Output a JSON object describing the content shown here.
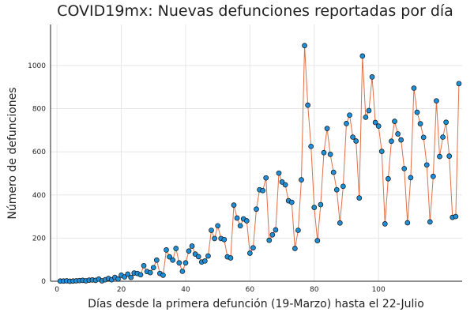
{
  "chart_data": {
    "type": "line",
    "title": "COVID19mx: Nuevas defunciones reportadas por día",
    "xlabel": "Días desde la primera defunción (19-Marzo) hasta el 22-Julio",
    "ylabel": "Número de defunciones",
    "xlim": [
      -2,
      126
    ],
    "ylim": [
      0,
      1190
    ],
    "xticks": [
      0,
      20,
      40,
      60,
      80,
      100
    ],
    "yticks": [
      0,
      200,
      400,
      600,
      800,
      1000
    ],
    "grid": true,
    "legend": false,
    "line_color": "#e26f46",
    "marker_color": "#1f8ed6",
    "marker_edge_color": "#111111",
    "series": [
      {
        "x": [
          1,
          2,
          3,
          4,
          5,
          6,
          7,
          8,
          9,
          10,
          11,
          12,
          13,
          14,
          15,
          16,
          17,
          18,
          19,
          20,
          21,
          22,
          23,
          24,
          25,
          26,
          27,
          28,
          29,
          30,
          31,
          32,
          33,
          34,
          35,
          36,
          37,
          38,
          39,
          40,
          41,
          42,
          43,
          44,
          45,
          46,
          47,
          48,
          49,
          50,
          51,
          52,
          53,
          54,
          55,
          56,
          57,
          58,
          59,
          60,
          61,
          62,
          63,
          64,
          65,
          66,
          67,
          68,
          69,
          70,
          71,
          72,
          73,
          74,
          75,
          76,
          77,
          78,
          79,
          80,
          81,
          82,
          83,
          84,
          85,
          86,
          87,
          88,
          89,
          90,
          91,
          92,
          93,
          94,
          95,
          96,
          97,
          98,
          99,
          100,
          101,
          102,
          103,
          104,
          105,
          106,
          107,
          108,
          109,
          110,
          111,
          112,
          113,
          114,
          115,
          116,
          117,
          118,
          119,
          120,
          121,
          122,
          123,
          124,
          125
        ],
        "values": [
          1,
          1,
          2,
          0,
          1,
          2,
          3,
          4,
          2,
          5,
          6,
          4,
          10,
          2,
          7,
          13,
          7,
          18,
          10,
          28,
          20,
          33,
          18,
          38,
          36,
          30,
          72,
          45,
          40,
          63,
          98,
          36,
          28,
          145,
          113,
          98,
          152,
          85,
          46,
          85,
          140,
          163,
          126,
          114,
          89,
          94,
          117,
          236,
          198,
          257,
          198,
          193,
          113,
          108,
          353,
          293,
          257,
          289,
          280,
          130,
          155,
          334,
          424,
          420,
          479,
          190,
          215,
          238,
          501,
          460,
          447,
          373,
          366,
          152,
          236,
          470,
          1092,
          816,
          625,
          342,
          188,
          355,
          596,
          708,
          588,
          505,
          424,
          270,
          440,
          731,
          770,
          668,
          650,
          386,
          1044,
          760,
          791,
          947,
          736,
          719,
          602,
          266,
          475,
          649,
          741,
          683,
          655,
          522,
          271,
          480,
          895,
          783,
          730,
          667,
          539,
          275,
          486,
          836,
          578,
          668,
          737,
          580,
          296,
          300,
          916
        ]
      }
    ]
  }
}
